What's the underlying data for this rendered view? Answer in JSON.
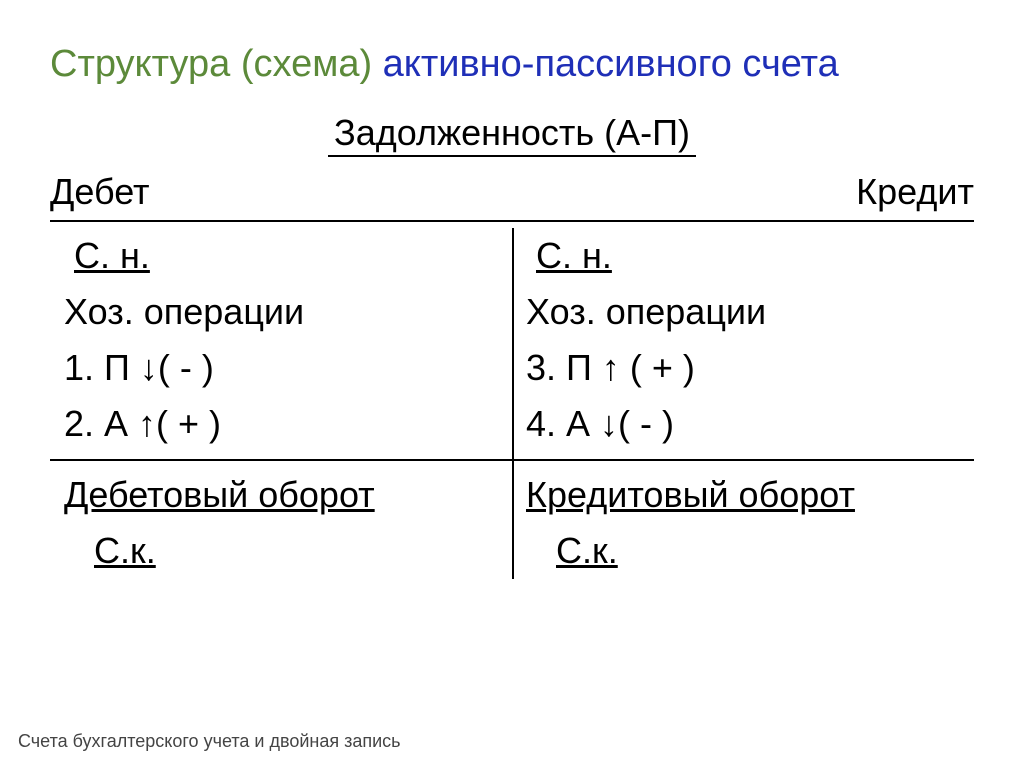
{
  "style": {
    "bg_color": "#ffffff",
    "title_color_green": "#5c8a3a",
    "title_color_blue": "#1f2fb7",
    "body_color": "#000000",
    "footer_color": "#444444",
    "rule_color": "#000000",
    "title_fontsize_pt": 29,
    "body_fontsize_pt": 27,
    "footer_fontsize_pt": 13
  },
  "title": {
    "part1": "Структура (схема)",
    "part2": "активно-пассивного счета"
  },
  "heading": "Задолженность (А-П)",
  "header": {
    "debit": "Дебет",
    "credit": "Кредит"
  },
  "rows": {
    "sn": "С. н.",
    "ops_label": "Хоз. операции",
    "debit_ops": [
      "1. П ↓( - )",
      "2. А ↑( + )"
    ],
    "credit_ops": [
      "3. П ↑ ( + )",
      "4. А ↓( - )"
    ],
    "turnover_debit": "Дебетовый оборот",
    "turnover_credit": "Кредитовый оборот",
    "sk": "С.к."
  },
  "footer": "Счета бухгалтерского учета и двойная запись"
}
